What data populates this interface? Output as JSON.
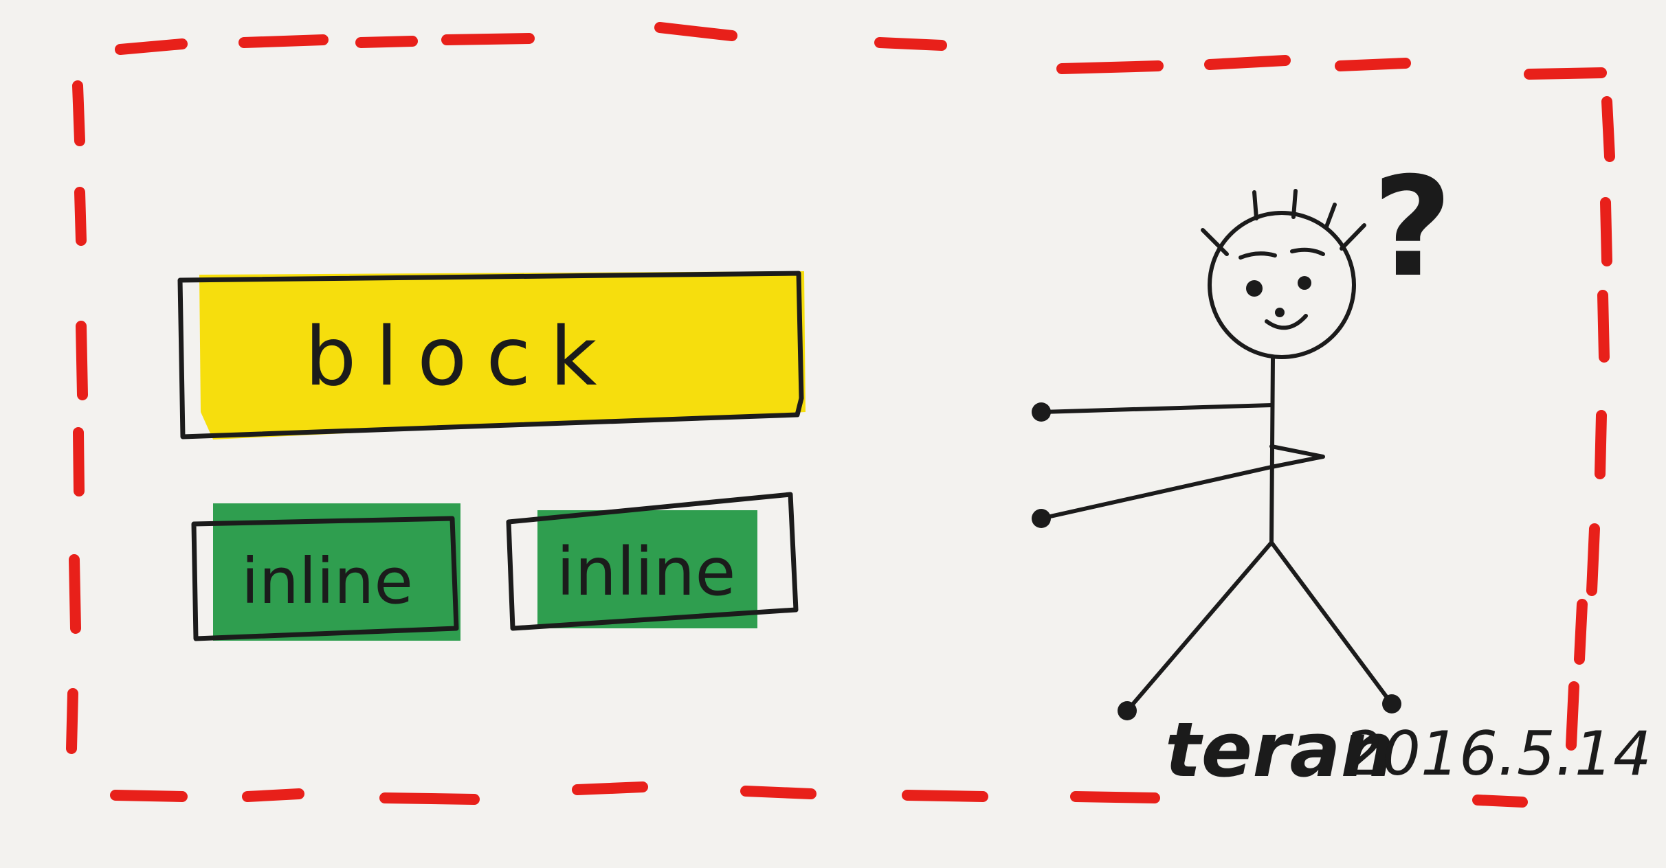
{
  "colors": {
    "paper": "#f3f2ef",
    "frame_dash": "#e8201a",
    "block_fill": "#f5dc00",
    "inline_fill": "#2f9e4f",
    "ink": "#1b1b1b"
  },
  "boxes": {
    "block_label": "block",
    "inline_left_label": "inline",
    "inline_right_label": "inline"
  },
  "figure": {
    "question_mark": "?"
  },
  "signature": {
    "name": "teran",
    "date": "2016.5.14"
  }
}
